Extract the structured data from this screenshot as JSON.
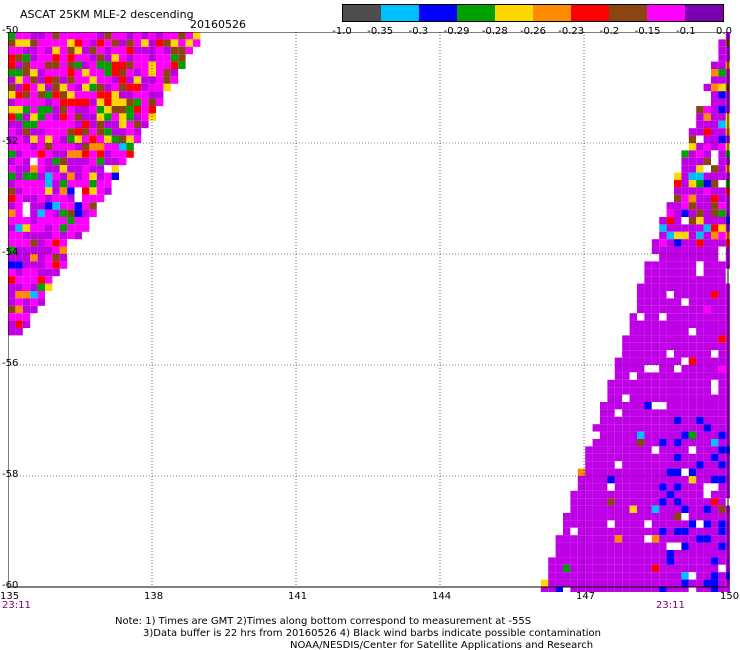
{
  "header": {
    "title": "ASCAT 25KM MLE-2 descending",
    "date": "20160526"
  },
  "colorbar": {
    "colors": [
      "#4d4d4d",
      "#00bfff",
      "#0000ff",
      "#00a000",
      "#ffd700",
      "#ff8c00",
      "#ff0000",
      "#8b4513",
      "#ff00ff",
      "#7b00b0"
    ],
    "labels": [
      "-1.0",
      "-0.35",
      "-0.3",
      "-0.29",
      "-0.28",
      "-0.26",
      "-0.23",
      "-0.2",
      "-0.15",
      "-0.1",
      "0.0"
    ]
  },
  "axes": {
    "lat_ticks": [
      "-50",
      "-52",
      "-54",
      "-56",
      "-58",
      "-60"
    ],
    "lon_ticks": [
      "135",
      "138",
      "141",
      "144",
      "147",
      "150"
    ],
    "lon_range": [
      135,
      150
    ],
    "lat_range": [
      -50,
      -60
    ],
    "grid": true
  },
  "times": {
    "left": "23:11",
    "right": "23:11"
  },
  "notes": {
    "line1": "Note: 1) Times are GMT 2)Times along bottom correspond to measurement at -55S",
    "line2": "3)Data buffer is 22 hrs from 20160526 4) Black wind barbs indicate possible contamination",
    "line3": "NOAA/NESDIS/Center for Satellite Applications and Research"
  },
  "legend_colors": {
    "background_swath": "#bf00e6",
    "noise": [
      "#ff00ff",
      "#ff0000",
      "#ffd700",
      "#8b4513",
      "#00a000",
      "#0000ff",
      "#00bfff",
      "#ff8c00",
      "#ffffff"
    ]
  }
}
